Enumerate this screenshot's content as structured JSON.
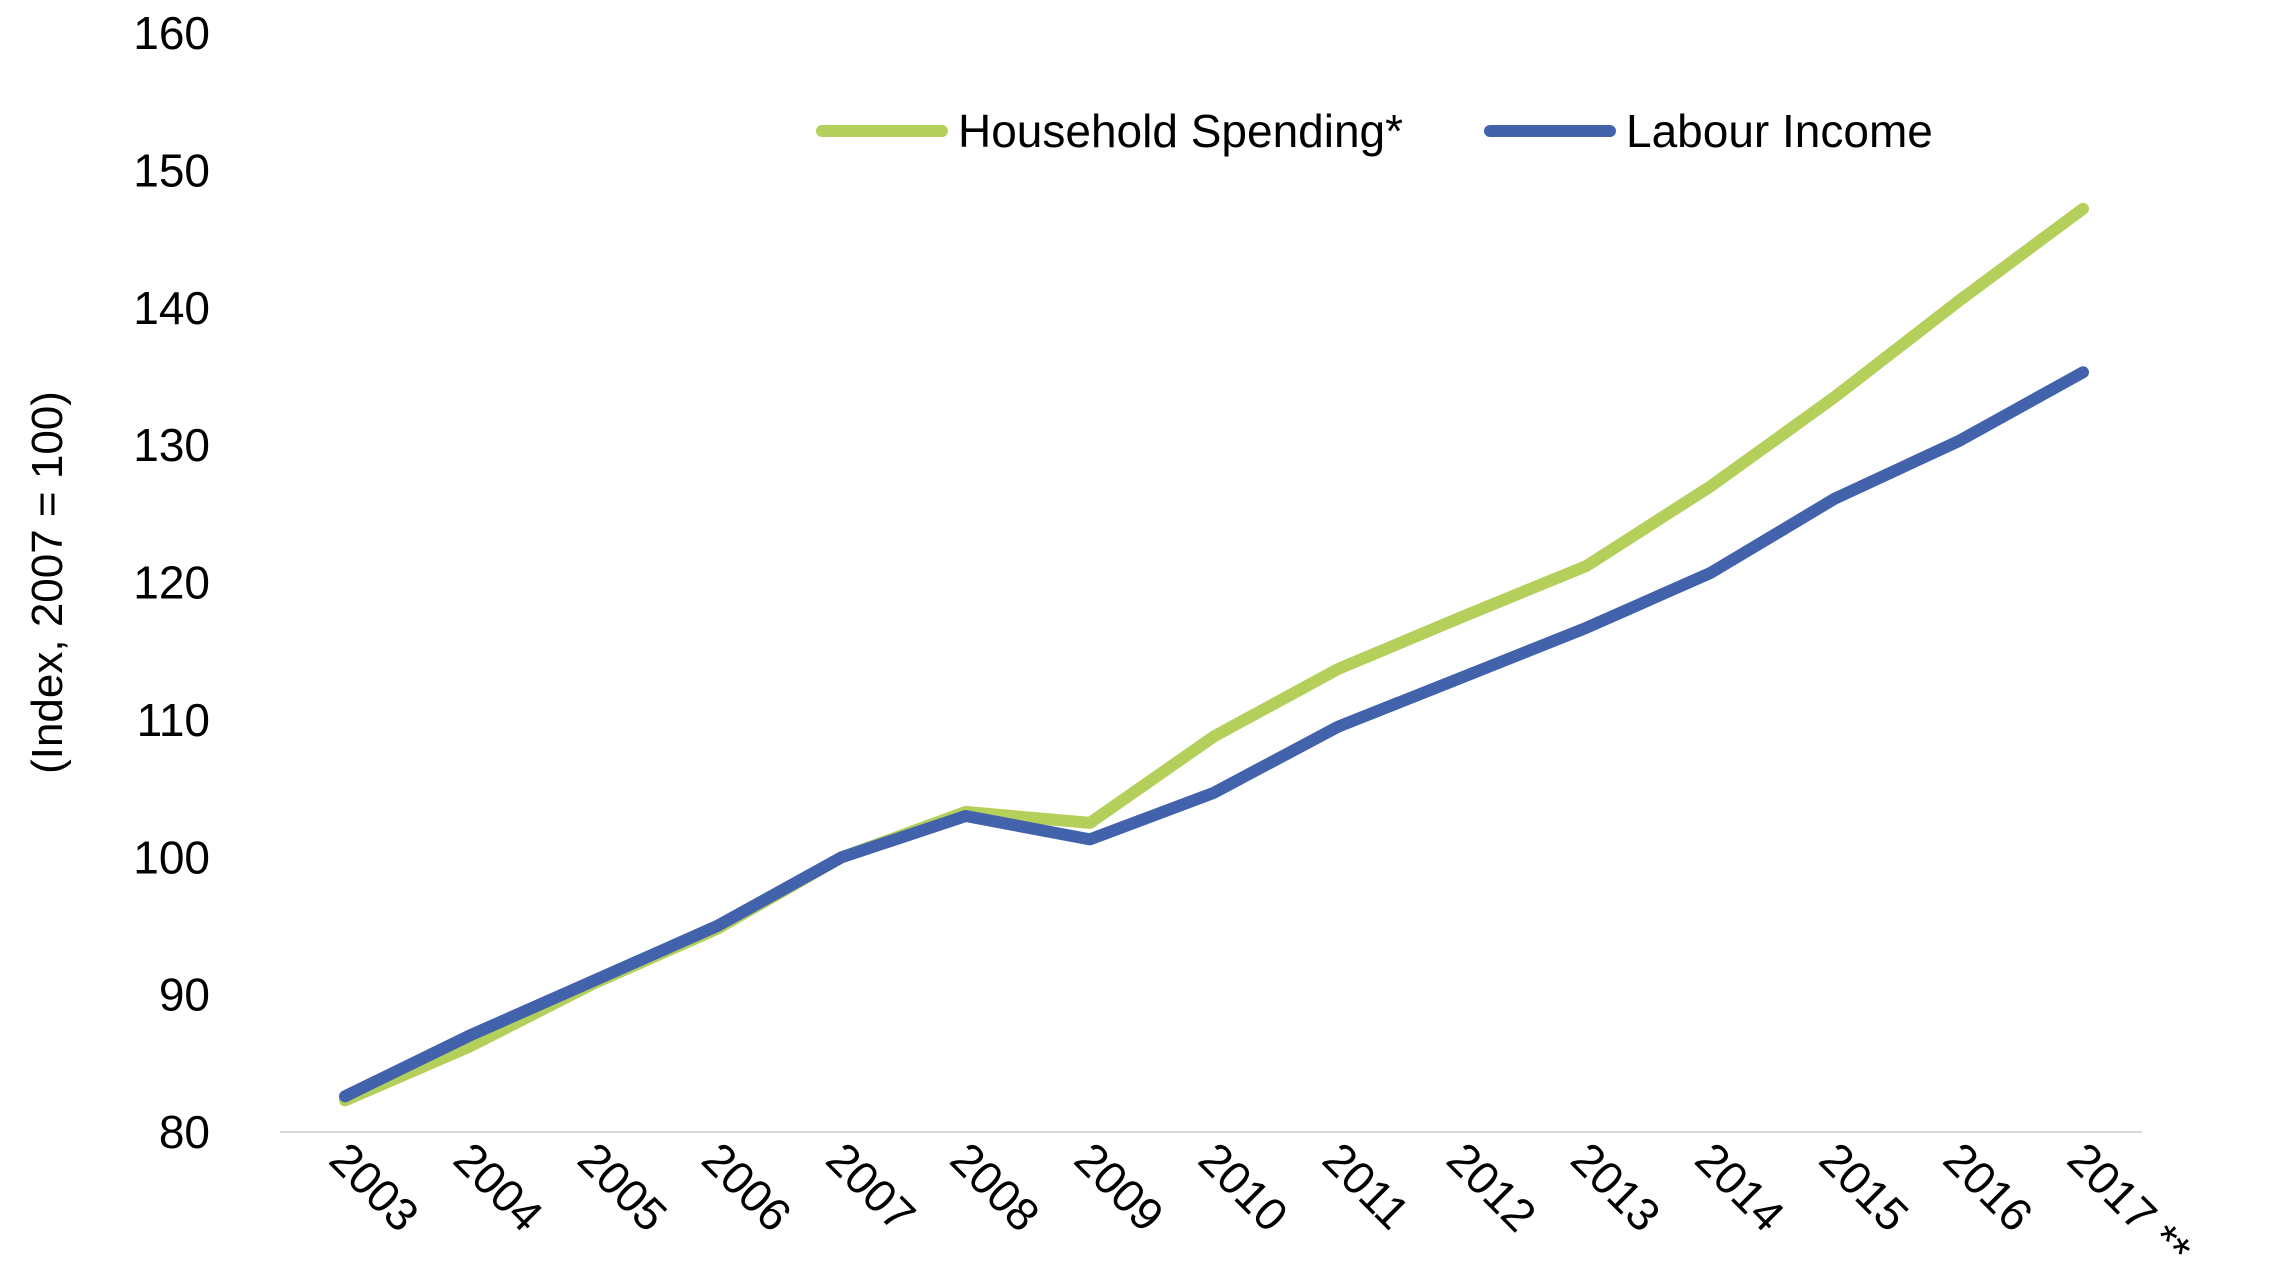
{
  "chart_data": {
    "type": "line",
    "title": "",
    "xlabel": "",
    "ylabel": "(Index, 2007 = 100)",
    "ylim": [
      80,
      160
    ],
    "yticks": [
      80,
      90,
      100,
      110,
      120,
      130,
      140,
      150,
      160
    ],
    "grid": false,
    "legend_position": "top-center",
    "categories": [
      "2003",
      "2004",
      "2005",
      "2006",
      "2007",
      "2008",
      "2009",
      "2010",
      "2011",
      "2012",
      "2013",
      "2014",
      "2015",
      "2016",
      "2017 **"
    ],
    "series": [
      {
        "name": "Household Spending*",
        "color": "#b5cf5b",
        "values": [
          82.3,
          86.2,
          90.8,
          94.8,
          100.0,
          103.3,
          102.5,
          108.8,
          113.7,
          117.5,
          121.2,
          127.0,
          133.5,
          140.5,
          147.2
        ]
      },
      {
        "name": "Labour Income",
        "color": "#4263ac",
        "values": [
          82.6,
          87.0,
          91.0,
          95.0,
          100.0,
          103.0,
          101.3,
          104.7,
          109.5,
          113.1,
          116.7,
          120.7,
          126.1,
          130.3,
          135.3
        ]
      }
    ]
  }
}
